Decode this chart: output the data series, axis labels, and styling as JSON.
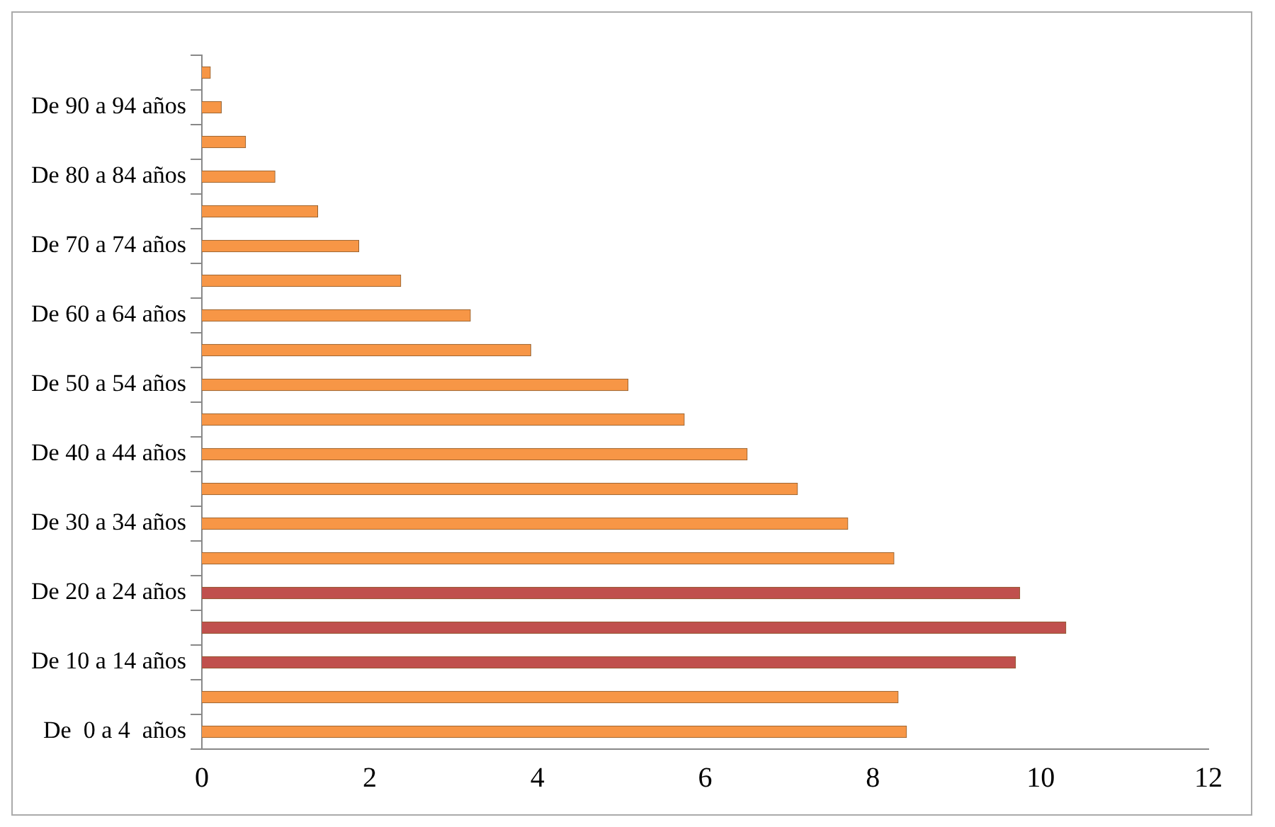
{
  "chart_data": {
    "type": "bar",
    "orientation": "horizontal",
    "categories": [
      null,
      "De 90 a 94 años",
      null,
      "De 80 a 84 años",
      null,
      "De 70 a 74 años",
      null,
      "De 60 a 64 años",
      null,
      "De 50 a 54 años",
      null,
      "De 40 a 44 años",
      null,
      "De 30 a 34 años",
      null,
      "De 20 a 24 años",
      null,
      "De 10 a 14 años",
      null,
      "De  0 a 4  años"
    ],
    "values": [
      0.1,
      0.23,
      0.52,
      0.87,
      1.38,
      1.87,
      2.37,
      3.2,
      3.92,
      5.08,
      5.75,
      6.5,
      7.1,
      7.7,
      8.25,
      9.75,
      10.3,
      9.7,
      8.3,
      8.4
    ],
    "colors": [
      "#f79646",
      "#f79646",
      "#f79646",
      "#f79646",
      "#f79646",
      "#f79646",
      "#f79646",
      "#f79646",
      "#f79646",
      "#f79646",
      "#f79646",
      "#f79646",
      "#f79646",
      "#f79646",
      "#f79646",
      "#c0504d",
      "#c0504d",
      "#c0504d",
      "#f79646",
      "#f79646"
    ],
    "xlim": [
      0,
      12
    ],
    "xticks": [
      0,
      2,
      4,
      6,
      8,
      10,
      12
    ],
    "grid": false,
    "legend": false
  }
}
